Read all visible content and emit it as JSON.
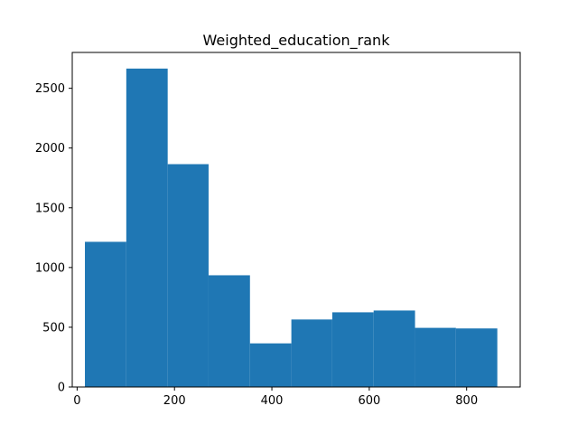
{
  "chart_data": {
    "type": "bar",
    "title": "Weighted_education_rank",
    "xlabel": "",
    "ylabel": "",
    "xlim": [
      -10,
      910
    ],
    "ylim": [
      0,
      2800
    ],
    "bins": [
      {
        "x0": 16,
        "x1": 101,
        "count": 1215
      },
      {
        "x0": 101,
        "x1": 186,
        "count": 2665
      },
      {
        "x0": 186,
        "x1": 270,
        "count": 1865
      },
      {
        "x0": 270,
        "x1": 355,
        "count": 935
      },
      {
        "x0": 355,
        "x1": 440,
        "count": 365
      },
      {
        "x0": 440,
        "x1": 524,
        "count": 565
      },
      {
        "x0": 524,
        "x1": 609,
        "count": 625
      },
      {
        "x0": 609,
        "x1": 694,
        "count": 640
      },
      {
        "x0": 694,
        "x1": 778,
        "count": 495
      },
      {
        "x0": 778,
        "x1": 863,
        "count": 490
      }
    ],
    "x_ticks": [
      0,
      200,
      400,
      600,
      800
    ],
    "y_ticks": [
      0,
      500,
      1000,
      1500,
      2000,
      2500
    ],
    "bar_color": "#1f77b4",
    "grid": false,
    "legend": "none"
  }
}
